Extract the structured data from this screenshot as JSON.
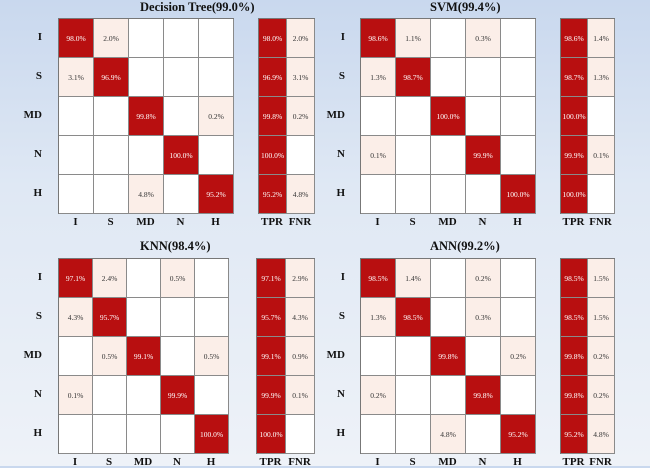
{
  "chart_data": [
    {
      "type": "heatmap",
      "title": "Decision Tree(99.0%)",
      "rows": [
        "I",
        "S",
        "MD",
        "N",
        "H"
      ],
      "cols": [
        "I",
        "S",
        "MD",
        "N",
        "H"
      ],
      "matrix": [
        [
          "98.0%",
          "2.0%",
          "",
          "",
          ""
        ],
        [
          "3.1%",
          "96.9%",
          "",
          "",
          ""
        ],
        [
          "",
          "",
          "99.8%",
          "",
          "0.2%"
        ],
        [
          "",
          "",
          "",
          "100.0%",
          ""
        ],
        [
          "",
          "",
          "4.8%",
          "",
          "95.2%"
        ]
      ],
      "side_cols": [
        "TPR",
        "FNR"
      ],
      "side": [
        [
          "98.0%",
          "2.0%"
        ],
        [
          "96.9%",
          "3.1%"
        ],
        [
          "99.8%",
          "0.2%"
        ],
        [
          "100.0%",
          ""
        ],
        [
          "95.2%",
          "4.8%"
        ]
      ]
    },
    {
      "type": "heatmap",
      "title": "SVM(99.4%)",
      "rows": [
        "I",
        "S",
        "MD",
        "N",
        "H"
      ],
      "cols": [
        "I",
        "S",
        "MD",
        "N",
        "H"
      ],
      "matrix": [
        [
          "98.6%",
          "1.1%",
          "",
          "0.3%",
          ""
        ],
        [
          "1.3%",
          "98.7%",
          "",
          "",
          ""
        ],
        [
          "",
          "",
          "100.0%",
          "",
          ""
        ],
        [
          "0.1%",
          "",
          "",
          "99.9%",
          ""
        ],
        [
          "",
          "",
          "",
          "",
          "100.0%"
        ]
      ],
      "side_cols": [
        "TPR",
        "FNR"
      ],
      "side": [
        [
          "98.6%",
          "1.4%"
        ],
        [
          "98.7%",
          "1.3%"
        ],
        [
          "100.0%",
          ""
        ],
        [
          "99.9%",
          "0.1%"
        ],
        [
          "100.0%",
          ""
        ]
      ]
    },
    {
      "type": "heatmap",
      "title": "KNN(98.4%)",
      "rows": [
        "I",
        "S",
        "MD",
        "N",
        "H"
      ],
      "cols": [
        "I",
        "S",
        "MD",
        "N",
        "H"
      ],
      "matrix": [
        [
          "97.1%",
          "2.4%",
          "",
          "0.5%",
          ""
        ],
        [
          "4.3%",
          "95.7%",
          "",
          "",
          ""
        ],
        [
          "",
          "0.5%",
          "99.1%",
          "",
          "0.5%"
        ],
        [
          "0.1%",
          "",
          "",
          "99.9%",
          ""
        ],
        [
          "",
          "",
          "",
          "",
          "100.0%"
        ]
      ],
      "side_cols": [
        "TPR",
        "FNR"
      ],
      "side": [
        [
          "97.1%",
          "2.9%"
        ],
        [
          "95.7%",
          "4.3%"
        ],
        [
          "99.1%",
          "0.9%"
        ],
        [
          "99.9%",
          "0.1%"
        ],
        [
          "100.0%",
          ""
        ]
      ]
    },
    {
      "type": "heatmap",
      "title": "ANN(99.2%)",
      "rows": [
        "I",
        "S",
        "MD",
        "N",
        "H"
      ],
      "cols": [
        "I",
        "S",
        "MD",
        "N",
        "H"
      ],
      "matrix": [
        [
          "98.5%",
          "1.4%",
          "",
          "0.2%",
          ""
        ],
        [
          "1.3%",
          "98.5%",
          "",
          "0.3%",
          ""
        ],
        [
          "",
          "",
          "99.8%",
          "",
          "0.2%"
        ],
        [
          "0.2%",
          "",
          "",
          "99.8%",
          ""
        ],
        [
          "",
          "",
          "4.8%",
          "",
          "95.2%"
        ]
      ],
      "side_cols": [
        "TPR",
        "FNR"
      ],
      "side": [
        [
          "98.5%",
          "1.5%"
        ],
        [
          "98.5%",
          "1.5%"
        ],
        [
          "99.8%",
          "0.2%"
        ],
        [
          "99.8%",
          "0.2%"
        ],
        [
          "95.2%",
          "4.8%"
        ]
      ]
    }
  ],
  "colors": {
    "high": "#b80f10",
    "low": "#fbeee8",
    "empty": "#ffffff"
  }
}
